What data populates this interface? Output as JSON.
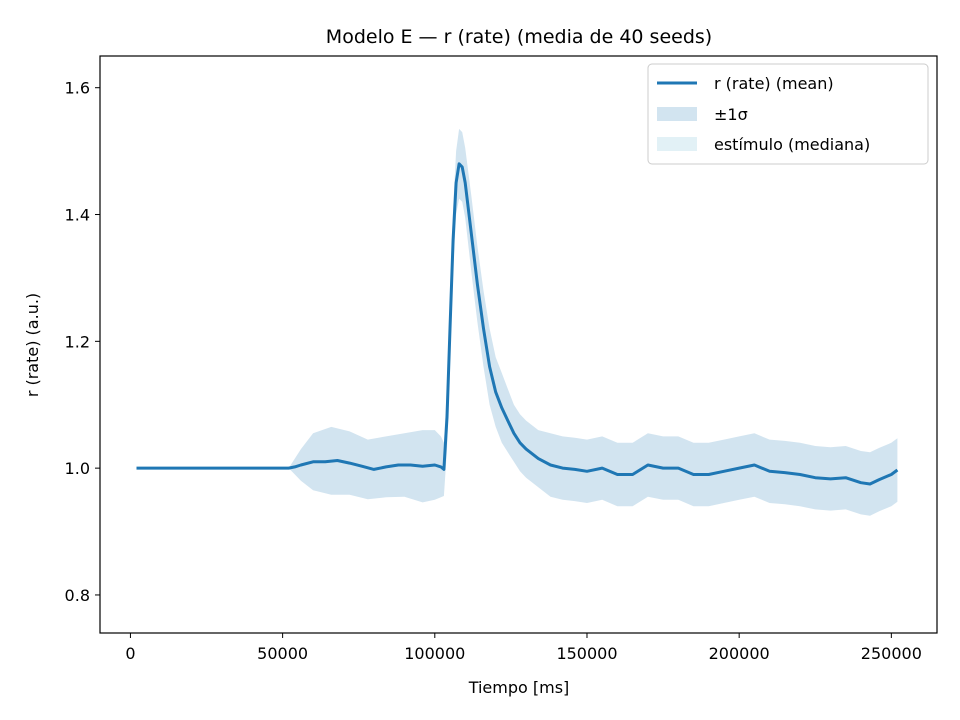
{
  "chart_data": {
    "type": "line",
    "title": "Modelo E — r (rate) (media de 40 seeds)",
    "xlabel": "Tiempo [ms]",
    "ylabel": "r (rate) (a.u.)",
    "xlim": [
      -10000,
      265000
    ],
    "ylim": [
      0.74,
      1.65
    ],
    "xticks": [
      0,
      50000,
      100000,
      150000,
      200000,
      250000
    ],
    "xtick_labels": [
      "0",
      "50000",
      "100000",
      "150000",
      "200000",
      "250000"
    ],
    "yticks": [
      0.8,
      1.0,
      1.2,
      1.4,
      1.6
    ],
    "ytick_labels": [
      "0.8",
      "1.0",
      "1.2",
      "1.4",
      "1.6"
    ],
    "grid": false,
    "legend_position": "top-right",
    "colors": {
      "mean": "#1f77b4",
      "band": "#1f77b4",
      "stimulus": "#add8e6"
    },
    "legend": [
      "r (rate) (mean)",
      "±1σ",
      "estímulo (mediana)"
    ],
    "series": [
      {
        "name": "r (rate) (mean)",
        "x": [
          2000,
          20000,
          52000,
          54000,
          56000,
          60000,
          64000,
          68000,
          72000,
          76000,
          80000,
          84000,
          88000,
          92000,
          96000,
          100000,
          102000,
          103000,
          104000,
          105000,
          106000,
          107000,
          108000,
          109000,
          110000,
          112000,
          114000,
          116000,
          118000,
          120000,
          122000,
          124000,
          126000,
          128000,
          130000,
          134000,
          138000,
          142000,
          146000,
          150000,
          155000,
          160000,
          165000,
          170000,
          175000,
          180000,
          185000,
          190000,
          195000,
          200000,
          205000,
          210000,
          215000,
          220000,
          225000,
          230000,
          235000,
          240000,
          243000,
          246000,
          250000,
          252000
        ],
        "y": [
          1.0,
          1.0,
          1.0,
          1.002,
          1.005,
          1.01,
          1.01,
          1.012,
          1.008,
          1.003,
          0.998,
          1.002,
          1.005,
          1.005,
          1.003,
          1.005,
          1.002,
          0.998,
          1.08,
          1.22,
          1.36,
          1.45,
          1.48,
          1.475,
          1.45,
          1.37,
          1.29,
          1.22,
          1.16,
          1.12,
          1.095,
          1.075,
          1.055,
          1.04,
          1.03,
          1.015,
          1.005,
          1.0,
          0.998,
          0.995,
          1.0,
          0.99,
          0.99,
          1.005,
          1.0,
          1.0,
          0.99,
          0.99,
          0.995,
          1.0,
          1.005,
          0.995,
          0.993,
          0.99,
          0.985,
          0.983,
          0.985,
          0.977,
          0.975,
          0.982,
          0.99,
          0.997
        ]
      },
      {
        "name": "±1σ",
        "x": [
          52000,
          56000,
          60000,
          66000,
          72000,
          78000,
          84000,
          90000,
          96000,
          100000,
          102000,
          103000,
          104000,
          105000,
          106000,
          107000,
          108000,
          109000,
          110000,
          112000,
          114000,
          116000,
          118000,
          120000,
          122000,
          124000,
          126000,
          128000,
          130000,
          134000,
          138000,
          142000,
          146000,
          150000,
          155000,
          160000,
          165000,
          170000,
          175000,
          180000,
          185000,
          190000,
          195000,
          200000,
          205000,
          210000,
          215000,
          220000,
          225000,
          230000,
          235000,
          240000,
          243000,
          246000,
          250000,
          252000
        ],
        "upper": [
          1.0,
          1.03,
          1.055,
          1.065,
          1.058,
          1.045,
          1.05,
          1.055,
          1.06,
          1.06,
          1.05,
          1.04,
          1.13,
          1.27,
          1.41,
          1.5,
          1.535,
          1.53,
          1.505,
          1.43,
          1.35,
          1.28,
          1.22,
          1.175,
          1.15,
          1.125,
          1.1,
          1.085,
          1.075,
          1.06,
          1.055,
          1.05,
          1.048,
          1.045,
          1.05,
          1.04,
          1.04,
          1.055,
          1.05,
          1.05,
          1.04,
          1.04,
          1.045,
          1.05,
          1.055,
          1.045,
          1.043,
          1.04,
          1.035,
          1.033,
          1.035,
          1.027,
          1.025,
          1.032,
          1.04,
          1.047
        ],
        "lower": [
          1.0,
          0.98,
          0.965,
          0.958,
          0.958,
          0.951,
          0.954,
          0.955,
          0.946,
          0.95,
          0.954,
          0.956,
          1.03,
          1.17,
          1.31,
          1.4,
          1.425,
          1.42,
          1.395,
          1.31,
          1.23,
          1.16,
          1.1,
          1.065,
          1.04,
          1.025,
          1.01,
          0.995,
          0.985,
          0.97,
          0.955,
          0.95,
          0.948,
          0.945,
          0.95,
          0.94,
          0.94,
          0.955,
          0.95,
          0.95,
          0.94,
          0.94,
          0.945,
          0.95,
          0.955,
          0.945,
          0.943,
          0.94,
          0.935,
          0.933,
          0.935,
          0.927,
          0.925,
          0.932,
          0.94,
          0.947
        ]
      },
      {
        "name": "estímulo (mediana)",
        "x": [],
        "y": []
      }
    ]
  }
}
